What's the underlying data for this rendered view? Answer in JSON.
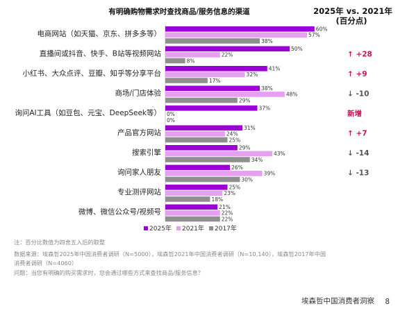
{
  "colors": {
    "s2025": "#9b00d4",
    "s2021": "#e6a0f0",
    "s2017": "#8f8f8f",
    "up": "#c2185b",
    "down": "#555555",
    "new": "#c2185b"
  },
  "chart_data": {
    "type": "bar",
    "orientation": "horizontal",
    "title": "有明确购物需求时查找商品/服务信息的渠道",
    "comparison_title_line1": "2025年 vs. 2021年",
    "comparison_title_line2": "(百分点)",
    "categories": [
      "电商网站（如天猫、京东、拼多多等）",
      "直播间或抖音、快手、B站等视频网站",
      "小红书、大众点评、豆瓣、知乎等分享平台",
      "商场/门店体验",
      "询问AI工具（如豆包、元宝、DeepSeek等）",
      "产品官方网站",
      "搜索引擎",
      "询问家人朋友",
      "专业测评网站",
      "微博、微信公众号/视频号"
    ],
    "series": [
      {
        "name": "2025年",
        "values": [
          60,
          50,
          41,
          38,
          37,
          31,
          29,
          26,
          25,
          21
        ]
      },
      {
        "name": "2021年",
        "values": [
          57,
          22,
          32,
          48,
          0,
          24,
          43,
          39,
          23,
          22
        ]
      },
      {
        "name": "2017年",
        "values": [
          38,
          8,
          17,
          29,
          0,
          25,
          34,
          30,
          18,
          22
        ]
      }
    ],
    "value_labels": [
      [
        "60%",
        "57%",
        "38%"
      ],
      [
        "50%",
        "22%",
        "8%"
      ],
      [
        "41%",
        "32%",
        "17%"
      ],
      [
        "38%",
        "48%",
        "29%"
      ],
      [
        "37%",
        "0%",
        "0%"
      ],
      [
        "31%",
        "24%",
        "25%"
      ],
      [
        "29%",
        "43%",
        "34%"
      ],
      [
        "26%",
        "39%",
        "30%"
      ],
      [
        "25%",
        "23%",
        "18%"
      ],
      [
        "21%",
        "22%",
        "22%"
      ]
    ],
    "deltas": [
      {
        "text": "",
        "dir": "none"
      },
      {
        "text": "↑ +28",
        "dir": "up"
      },
      {
        "text": "↑ +9",
        "dir": "up"
      },
      {
        "text": "↓ -10",
        "dir": "down"
      },
      {
        "text": "新增",
        "dir": "new"
      },
      {
        "text": "↑ +7",
        "dir": "up"
      },
      {
        "text": "↓ -14",
        "dir": "down"
      },
      {
        "text": "↓ -13",
        "dir": "down"
      },
      {
        "text": "",
        "dir": "none"
      },
      {
        "text": "",
        "dir": "none"
      }
    ],
    "xlim": [
      0,
      60
    ],
    "legend": [
      "2025年",
      "2021年",
      "2017年"
    ],
    "legend_position": "bottom"
  },
  "notes": {
    "note": "注：百分比数值为四舍五入后的取整",
    "source_line1": "数据来源：埃森哲2025年中国消费者调研（N=5000），埃森哲2021年中国消费者调研（N=10,140），埃森哲2017年中国",
    "source_line2": "消费者调研（N=4060）",
    "question": "问题：当您有明确的购买需求时，您会通过哪些方式来查找商品/服务信息？"
  },
  "footer": {
    "brand": "埃森哲中国消费者洞察",
    "page": "8"
  }
}
